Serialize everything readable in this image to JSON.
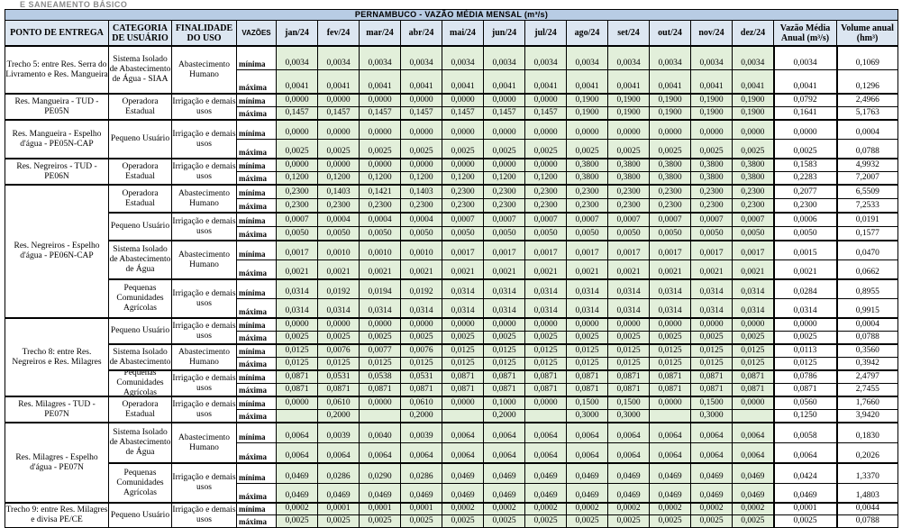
{
  "top_clipped_text": "E SANEAMENTO BÁSICO",
  "title": "PERNAMBUCO - VAZÃO MÉDIA MENSAL (m³/s)",
  "headers": {
    "point": "PONTO DE ENTREGA",
    "category": "CATEGORIA DE USUÁRIO",
    "purpose": "FINALIDADE DO USO",
    "flows": "VAZÕES",
    "months": [
      "jan/24",
      "fev/24",
      "mar/24",
      "abr/24",
      "mai/24",
      "jun/24",
      "jul/24",
      "ago/24",
      "set/24",
      "out/24",
      "nov/24",
      "dez/24"
    ],
    "annual_mean": "Vazão Média Anual (m³/s)",
    "annual_volume": "Volume anual (hm³)"
  },
  "labels": {
    "min": "mínima",
    "max": "máxima"
  },
  "colors": {
    "title_bg": "#b8cce4",
    "header_bg": "#dce6f1",
    "month_cell_bg": "#e2efda"
  },
  "entries": [
    {
      "point": "Trecho 5: entre Res. Serra do Livramento e Res. Mangueira",
      "groups": [
        {
          "category": "Sistema Isolado de Abastecimento de Água - SIAA",
          "purpose": "Abastecimento Humano",
          "min": [
            "0,0034",
            "0,0034",
            "0,0034",
            "0,0034",
            "0,0034",
            "0,0034",
            "0,0034",
            "0,0034",
            "0,0034",
            "0,0034",
            "0,0034",
            "0,0034",
            "0,0034",
            "0,1069"
          ],
          "max": [
            "0,0041",
            "0,0041",
            "0,0041",
            "0,0041",
            "0,0041",
            "0,0041",
            "0,0041",
            "0,0041",
            "0,0041",
            "0,0041",
            "0,0041",
            "0,0041",
            "0,0041",
            "0,1296"
          ]
        }
      ]
    },
    {
      "point": "Res. Mangueira - TUD - PE05N",
      "groups": [
        {
          "category": "Operadora Estadual",
          "purpose": "Irrigação e demais usos",
          "min": [
            "0,0000",
            "0,0000",
            "0,0000",
            "0,0000",
            "0,0000",
            "0,0000",
            "0,0000",
            "0,1900",
            "0,1900",
            "0,1900",
            "0,1900",
            "0,1900",
            "0,0792",
            "2,4966"
          ],
          "max": [
            "0,1457",
            "0,1457",
            "0,1457",
            "0,1457",
            "0,1457",
            "0,1457",
            "0,1457",
            "0,1900",
            "0,1900",
            "0,1900",
            "0,1900",
            "0,1900",
            "0,1641",
            "5,1763"
          ]
        }
      ]
    },
    {
      "point": "Res. Mangueira - Espelho d'água - PE05N-CAP",
      "groups": [
        {
          "category": "Pequeno Usuário",
          "purpose": "Irrigação e demais usos",
          "min": [
            "0,0000",
            "0,0000",
            "0,0000",
            "0,0000",
            "0,0000",
            "0,0000",
            "0,0000",
            "0,0000",
            "0,0000",
            "0,0000",
            "0,0000",
            "0,0000",
            "0,0000",
            "0,0004"
          ],
          "max": [
            "0,0025",
            "0,0025",
            "0,0025",
            "0,0025",
            "0,0025",
            "0,0025",
            "0,0025",
            "0,0025",
            "0,0025",
            "0,0025",
            "0,0025",
            "0,0025",
            "0,0025",
            "0,0788"
          ]
        }
      ]
    },
    {
      "point": "Res. Negreiros - TUD - PE06N",
      "groups": [
        {
          "category": "Operadora Estadual",
          "purpose": "Irrigação e demais usos",
          "min": [
            "0,0000",
            "0,0000",
            "0,0000",
            "0,0000",
            "0,0000",
            "0,0000",
            "0,0000",
            "0,3800",
            "0,3800",
            "0,3800",
            "0,3800",
            "0,3800",
            "0,1583",
            "4,9932"
          ],
          "max": [
            "0,1200",
            "0,1200",
            "0,1200",
            "0,1200",
            "0,1200",
            "0,1200",
            "0,1200",
            "0,3800",
            "0,3800",
            "0,3800",
            "0,3800",
            "0,3800",
            "0,2283",
            "7,2007"
          ]
        }
      ]
    },
    {
      "point": "Res. Negreiros - Espelho d'água - PE06N-CAP",
      "groups": [
        {
          "category": "Operadora Estadual",
          "purpose": "Abastecimento Humano",
          "min": [
            "0,2300",
            "0,1403",
            "0,1421",
            "0,1403",
            "0,2300",
            "0,2300",
            "0,2300",
            "0,2300",
            "0,2300",
            "0,2300",
            "0,2300",
            "0,2300",
            "0,2077",
            "6,5509"
          ],
          "max": [
            "0,2300",
            "0,2300",
            "0,2300",
            "0,2300",
            "0,2300",
            "0,2300",
            "0,2300",
            "0,2300",
            "0,2300",
            "0,2300",
            "0,2300",
            "0,2300",
            "0,2300",
            "7,2533"
          ]
        },
        {
          "category": "Pequeno Usuário",
          "purpose": "Irrigação e demais usos",
          "min": [
            "0,0007",
            "0,0004",
            "0,0004",
            "0,0004",
            "0,0007",
            "0,0007",
            "0,0007",
            "0,0007",
            "0,0007",
            "0,0007",
            "0,0007",
            "0,0007",
            "0,0006",
            "0,0191"
          ],
          "max": [
            "0,0050",
            "0,0050",
            "0,0050",
            "0,0050",
            "0,0050",
            "0,0050",
            "0,0050",
            "0,0050",
            "0,0050",
            "0,0050",
            "0,0050",
            "0,0050",
            "0,0050",
            "0,1577"
          ]
        },
        {
          "category": "Sistema Isolado de Abastecimento de Água",
          "purpose": "Abastecimento Humano",
          "min": [
            "0,0017",
            "0,0010",
            "0,0010",
            "0,0010",
            "0,0017",
            "0,0017",
            "0,0017",
            "0,0017",
            "0,0017",
            "0,0017",
            "0,0017",
            "0,0017",
            "0,0015",
            "0,0470"
          ],
          "max": [
            "0,0021",
            "0,0021",
            "0,0021",
            "0,0021",
            "0,0021",
            "0,0021",
            "0,0021",
            "0,0021",
            "0,0021",
            "0,0021",
            "0,0021",
            "0,0021",
            "0,0021",
            "0,0662"
          ]
        },
        {
          "category": "Pequenas Comunidades Agrícolas",
          "purpose": "Irrigação e demais usos",
          "min": [
            "0,0314",
            "0,0192",
            "0,0194",
            "0,0192",
            "0,0314",
            "0,0314",
            "0,0314",
            "0,0314",
            "0,0314",
            "0,0314",
            "0,0314",
            "0,0314",
            "0,0284",
            "0,8955"
          ],
          "max": [
            "0,0314",
            "0,0314",
            "0,0314",
            "0,0314",
            "0,0314",
            "0,0314",
            "0,0314",
            "0,0314",
            "0,0314",
            "0,0314",
            "0,0314",
            "0,0314",
            "0,0314",
            "0,9915"
          ]
        }
      ]
    },
    {
      "point": "Trecho 8: entre Res. Negreiros e Res. Milagres",
      "groups": [
        {
          "category": "Pequeno Usuário",
          "purpose": "Irrigação e demais usos",
          "min": [
            "0,0000",
            "0,0000",
            "0,0000",
            "0,0000",
            "0,0000",
            "0,0000",
            "0,0000",
            "0,0000",
            "0,0000",
            "0,0000",
            "0,0000",
            "0,0000",
            "0,0000",
            "0,0004"
          ],
          "max": [
            "0,0025",
            "0,0025",
            "0,0025",
            "0,0025",
            "0,0025",
            "0,0025",
            "0,0025",
            "0,0025",
            "0,0025",
            "0,0025",
            "0,0025",
            "0,0025",
            "0,0025",
            "0,0788"
          ]
        },
        {
          "category": "Sistema Isolado de Abastecimento",
          "purpose": "Abastecimento Humano",
          "min": [
            "0,0125",
            "0,0076",
            "0,0077",
            "0,0076",
            "0,0125",
            "0,0125",
            "0,0125",
            "0,0125",
            "0,0125",
            "0,0125",
            "0,0125",
            "0,0125",
            "0,0113",
            "0,3560"
          ],
          "max": [
            "0,0125",
            "0,0125",
            "0,0125",
            "0,0125",
            "0,0125",
            "0,0125",
            "0,0125",
            "0,0125",
            "0,0125",
            "0,0125",
            "0,0125",
            "0,0125",
            "0,0125",
            "0,3942"
          ]
        },
        {
          "category": "Pequenas Comunidades Agrícolas",
          "purpose": "Irrigação e demais usos",
          "min": [
            "0,0871",
            "0,0531",
            "0,0538",
            "0,0531",
            "0,0871",
            "0,0871",
            "0,0871",
            "0,0871",
            "0,0871",
            "0,0871",
            "0,0871",
            "0,0871",
            "0,0786",
            "2,4797"
          ],
          "max": [
            "0,0871",
            "0,0871",
            "0,0871",
            "0,0871",
            "0,0871",
            "0,0871",
            "0,0871",
            "0,0871",
            "0,0871",
            "0,0871",
            "0,0871",
            "0,0871",
            "0,0871",
            "2,7455"
          ]
        }
      ]
    },
    {
      "point": "Res. Milagres - TUD - PE07N",
      "groups": [
        {
          "category": "Operadora Estadual",
          "purpose": "Irrigação e demais usos",
          "min": [
            "0,0000",
            "0,0610",
            "0,0000",
            "0,0610",
            "0,0000",
            "0,1000",
            "0,0000",
            "0,1500",
            "0,1500",
            "0,0000",
            "0,1500",
            "0,0000",
            "0,0560",
            "1,7660"
          ],
          "max": [
            "",
            "0,2000",
            "",
            "0,2000",
            "",
            "0,2000",
            "",
            "0,3000",
            "0,3000",
            "",
            "0,3000",
            "",
            "0,1250",
            "3,9420"
          ]
        }
      ]
    },
    {
      "point": "Res. Milagres - Espelho d'água - PE07N",
      "groups": [
        {
          "category": "Sistema Isolado de Abastecimento de Água",
          "purpose": "Abastecimento Humano",
          "min": [
            "0,0064",
            "0,0039",
            "0,0040",
            "0,0039",
            "0,0064",
            "0,0064",
            "0,0064",
            "0,0064",
            "0,0064",
            "0,0064",
            "0,0064",
            "0,0064",
            "0,0058",
            "0,1830"
          ],
          "max": [
            "0,0064",
            "0,0064",
            "0,0064",
            "0,0064",
            "0,0064",
            "0,0064",
            "0,0064",
            "0,0064",
            "0,0064",
            "0,0064",
            "0,0064",
            "0,0064",
            "0,0064",
            "0,2026"
          ]
        },
        {
          "category": "Pequenas Comunidades Agrícolas",
          "purpose": "Irrigação e demais usos",
          "min": [
            "0,0469",
            "0,0286",
            "0,0290",
            "0,0286",
            "0,0469",
            "0,0469",
            "0,0469",
            "0,0469",
            "0,0469",
            "0,0469",
            "0,0469",
            "0,0469",
            "0,0424",
            "1,3370"
          ],
          "max": [
            "0,0469",
            "0,0469",
            "0,0469",
            "0,0469",
            "0,0469",
            "0,0469",
            "0,0469",
            "0,0469",
            "0,0469",
            "0,0469",
            "0,0469",
            "0,0469",
            "0,0469",
            "1,4803"
          ]
        }
      ]
    },
    {
      "point": "Trecho 9: entre Res. Milagres e divisa PE/CE",
      "groups": [
        {
          "category": "Pequeno Usuário",
          "purpose": "Irrigação e demais usos",
          "min": [
            "0,0002",
            "0,0001",
            "0,0001",
            "0,0001",
            "0,0002",
            "0,0002",
            "0,0002",
            "0,0002",
            "0,0002",
            "0,0002",
            "0,0002",
            "0,0002",
            "0,0001",
            "0,0044"
          ],
          "max": [
            "0,0025",
            "0,0025",
            "0,0025",
            "0,0025",
            "0,0025",
            "0,0025",
            "0,0025",
            "0,0025",
            "0,0025",
            "0,0025",
            "0,0025",
            "0,0025",
            "0,0025",
            "0,0788"
          ]
        }
      ]
    }
  ]
}
